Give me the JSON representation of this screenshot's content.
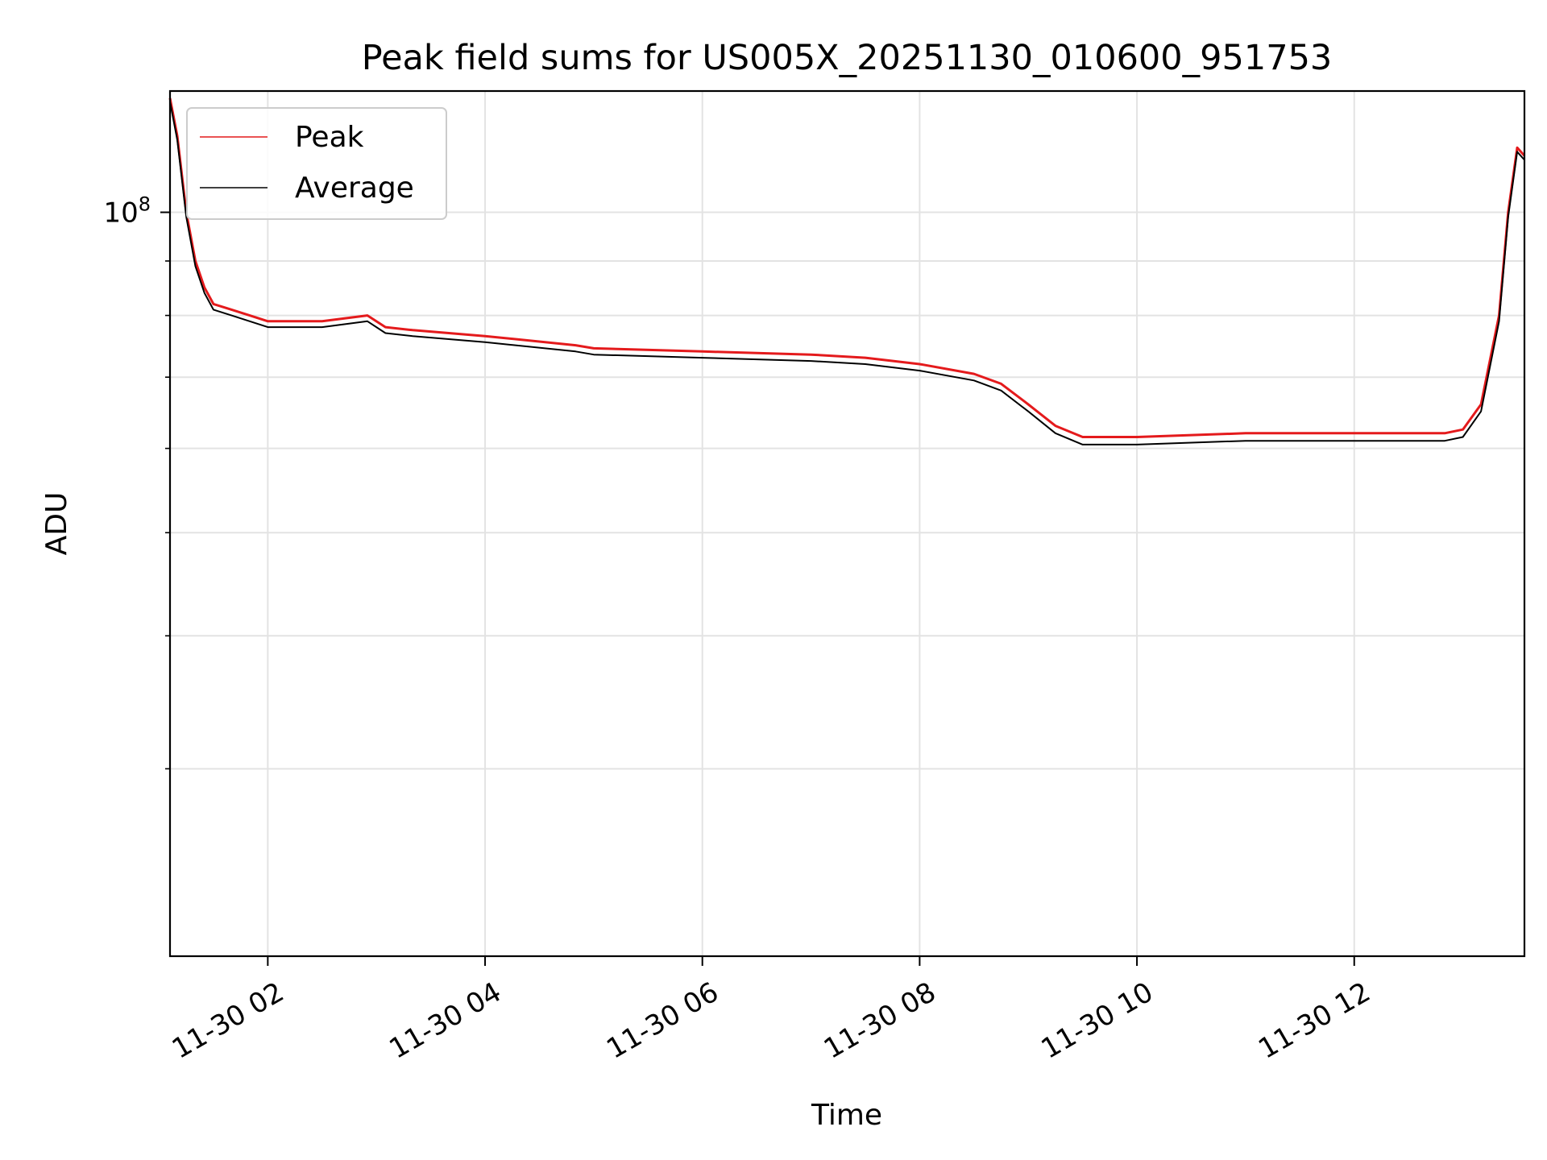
{
  "chart_data": {
    "type": "line",
    "title": "Peak field sums for US005X_20251130_010600_951753",
    "xlabel": "Time",
    "ylabel": "ADU",
    "y_scale": "log",
    "xlim": [
      "2025-11-30 01:06",
      "2025-11-30 13:34"
    ],
    "ylim": [
      20000000,
      130000000
    ],
    "x_ticks": [
      "2025-11-30 02:00",
      "2025-11-30 04:00",
      "2025-11-30 06:00",
      "2025-11-30 08:00",
      "2025-11-30 10:00",
      "2025-11-30 12:00"
    ],
    "x_tick_labels": [
      "11-30 02",
      "11-30 04",
      "11-30 06",
      "11-30 08",
      "11-30 10",
      "11-30 12"
    ],
    "y_major_ticks": [
      100000000
    ],
    "y_tick_labels": [
      "10^8"
    ],
    "y_minor_ticks": [
      30000000,
      40000000,
      50000000,
      60000000,
      70000000,
      80000000,
      90000000
    ],
    "grid": true,
    "legend": "top-left",
    "x": [
      "2025-11-30 01:06",
      "2025-11-30 01:10",
      "2025-11-30 01:15",
      "2025-11-30 01:20",
      "2025-11-30 01:25",
      "2025-11-30 01:30",
      "2025-11-30 01:40",
      "2025-11-30 01:50",
      "2025-11-30 02:00",
      "2025-11-30 02:30",
      "2025-11-30 02:55",
      "2025-11-30 03:05",
      "2025-11-30 03:20",
      "2025-11-30 04:00",
      "2025-11-30 04:50",
      "2025-11-30 05:00",
      "2025-11-30 06:00",
      "2025-11-30 07:00",
      "2025-11-30 07:30",
      "2025-11-30 08:00",
      "2025-11-30 08:30",
      "2025-11-30 08:45",
      "2025-11-30 09:00",
      "2025-11-30 09:15",
      "2025-11-30 09:30",
      "2025-11-30 10:00",
      "2025-11-30 11:00",
      "2025-11-30 12:00",
      "2025-11-30 12:50",
      "2025-11-30 13:00",
      "2025-11-30 13:10",
      "2025-11-30 13:20",
      "2025-11-30 13:25",
      "2025-11-30 13:30",
      "2025-11-30 13:34"
    ],
    "series": [
      {
        "name": "Peak",
        "color": "#e41a1c",
        "values": [
          128000000,
          118000000,
          100000000,
          90000000,
          85000000,
          82000000,
          81000000,
          80000000,
          79000000,
          79000000,
          80000000,
          78000000,
          77500000,
          76500000,
          75000000,
          74500000,
          74000000,
          73500000,
          73000000,
          72000000,
          70500000,
          69000000,
          66000000,
          63000000,
          61500000,
          61500000,
          62000000,
          62000000,
          62000000,
          62500000,
          66000000,
          80000000,
          100000000,
          115000000,
          113000000
        ]
      },
      {
        "name": "Average",
        "color": "#000000",
        "values": [
          127000000,
          117000000,
          99000000,
          89000000,
          84000000,
          81000000,
          80000000,
          79000000,
          78000000,
          78000000,
          79000000,
          77000000,
          76500000,
          75500000,
          74000000,
          73500000,
          73000000,
          72500000,
          72000000,
          71000000,
          69500000,
          68000000,
          65000000,
          62000000,
          60500000,
          60500000,
          61000000,
          61000000,
          61000000,
          61500000,
          65000000,
          79000000,
          99000000,
          114000000,
          112000000
        ]
      }
    ]
  }
}
